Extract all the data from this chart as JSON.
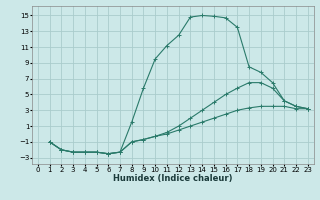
{
  "xlabel": "Humidex (Indice chaleur)",
  "bg_color": "#cce8e8",
  "grid_color": "#aacccc",
  "line_color": "#2a7a6a",
  "xlim": [
    -0.5,
    23.5
  ],
  "ylim": [
    -3.8,
    16.2
  ],
  "yticks": [
    -3,
    -1,
    1,
    3,
    5,
    7,
    9,
    11,
    13,
    15
  ],
  "xticks": [
    0,
    1,
    2,
    3,
    4,
    5,
    6,
    7,
    8,
    9,
    10,
    11,
    12,
    13,
    14,
    15,
    16,
    17,
    18,
    19,
    20,
    21,
    22,
    23
  ],
  "line1_x": [
    1,
    2,
    3,
    4,
    5,
    6,
    7,
    8,
    9,
    10,
    11,
    12,
    13,
    14,
    15,
    16,
    17,
    18,
    19,
    20,
    21,
    22,
    23
  ],
  "line1_y": [
    -1.0,
    -2.0,
    -2.3,
    -2.3,
    -2.3,
    -2.5,
    -2.3,
    1.5,
    5.8,
    9.5,
    11.2,
    12.5,
    14.8,
    15.0,
    14.9,
    14.7,
    13.5,
    8.5,
    7.8,
    6.5,
    4.2,
    3.5,
    3.2
  ],
  "line2_x": [
    1,
    2,
    3,
    4,
    5,
    6,
    7,
    8,
    9,
    10,
    11,
    12,
    13,
    14,
    15,
    16,
    17,
    18,
    19,
    20,
    21,
    22,
    23
  ],
  "line2_y": [
    -1.0,
    -2.0,
    -2.3,
    -2.3,
    -2.3,
    -2.5,
    -2.3,
    -1.0,
    -0.7,
    -0.3,
    0.2,
    1.0,
    2.0,
    3.0,
    4.0,
    5.0,
    5.8,
    6.5,
    6.5,
    5.8,
    4.2,
    3.5,
    3.2
  ],
  "line3_x": [
    1,
    2,
    3,
    4,
    5,
    6,
    7,
    8,
    9,
    10,
    11,
    12,
    13,
    14,
    15,
    16,
    17,
    18,
    19,
    20,
    21,
    22,
    23
  ],
  "line3_y": [
    -1.0,
    -2.0,
    -2.3,
    -2.3,
    -2.3,
    -2.5,
    -2.3,
    -1.0,
    -0.7,
    -0.3,
    0.0,
    0.5,
    1.0,
    1.5,
    2.0,
    2.5,
    3.0,
    3.3,
    3.5,
    3.5,
    3.5,
    3.2,
    3.2
  ]
}
